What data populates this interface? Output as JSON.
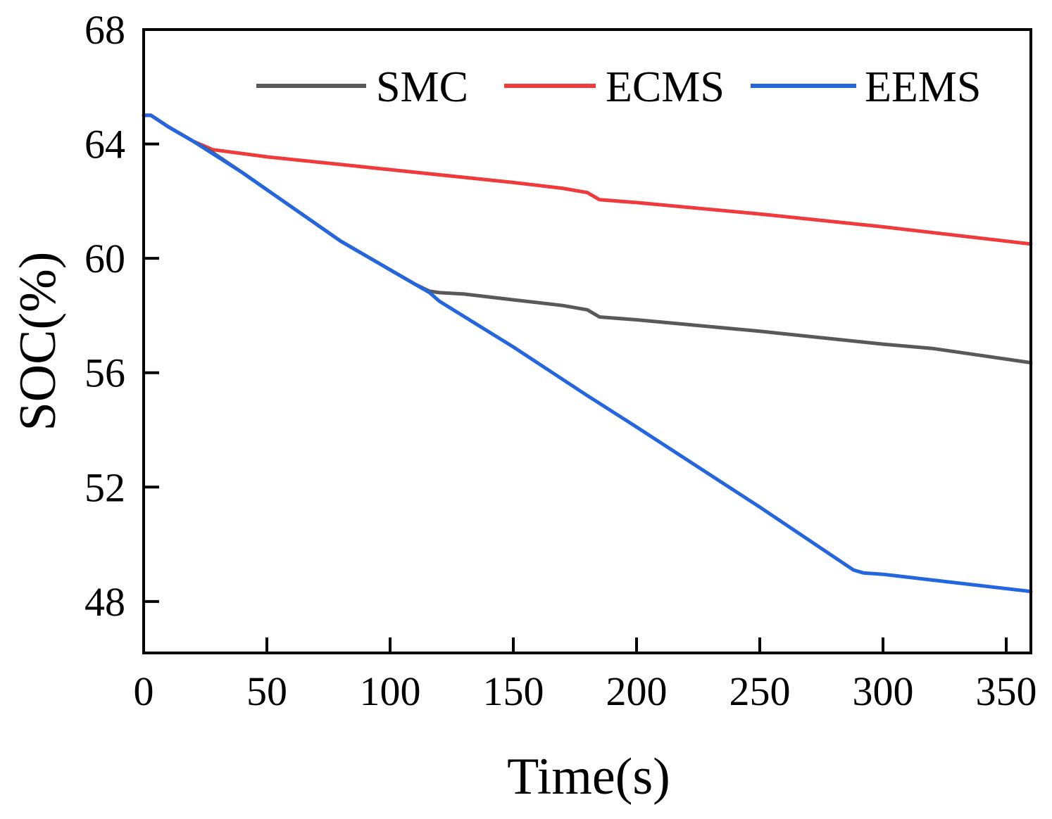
{
  "chart_data": {
    "type": "line",
    "title": "",
    "xlabel": "Time(s)",
    "ylabel": "SOC(%)",
    "xlim": [
      0,
      360
    ],
    "ylim": [
      46.2,
      68
    ],
    "xticks": [
      0,
      50,
      100,
      150,
      200,
      250,
      300,
      350
    ],
    "yticks": [
      48,
      52,
      56,
      60,
      64,
      68
    ],
    "grid": false,
    "legend": {
      "placement": "top",
      "orientation": "horizontal"
    },
    "series": [
      {
        "name": "SMC",
        "color": "#595959",
        "x": [
          0,
          3,
          10,
          20,
          28,
          40,
          60,
          80,
          100,
          110,
          116,
          120,
          130,
          150,
          170,
          180,
          185,
          200,
          250,
          300,
          320,
          340,
          360
        ],
        "y": [
          65.0,
          65.0,
          64.6,
          64.1,
          63.7,
          63.0,
          61.8,
          60.6,
          59.6,
          59.1,
          58.85,
          58.8,
          58.75,
          58.55,
          58.35,
          58.2,
          57.95,
          57.85,
          57.45,
          57.0,
          56.85,
          56.6,
          56.35
        ]
      },
      {
        "name": "ECMS",
        "color": "#ef3b3b",
        "x": [
          0,
          3,
          10,
          20,
          28,
          50,
          100,
          150,
          170,
          180,
          185,
          200,
          250,
          300,
          360
        ],
        "y": [
          65.0,
          65.0,
          64.6,
          64.1,
          63.8,
          63.55,
          63.1,
          62.65,
          62.45,
          62.3,
          62.05,
          61.95,
          61.55,
          61.1,
          60.5
        ]
      },
      {
        "name": "EEMS",
        "color": "#2466e0",
        "x": [
          0,
          3,
          10,
          20,
          40,
          60,
          80,
          100,
          116,
          120,
          150,
          180,
          200,
          250,
          288,
          292,
          300,
          320,
          340,
          360
        ],
        "y": [
          65.0,
          65.0,
          64.6,
          64.1,
          63.0,
          61.8,
          60.6,
          59.6,
          58.8,
          58.5,
          56.9,
          55.2,
          54.1,
          51.3,
          49.1,
          49.0,
          48.95,
          48.75,
          48.55,
          48.35
        ]
      }
    ]
  }
}
